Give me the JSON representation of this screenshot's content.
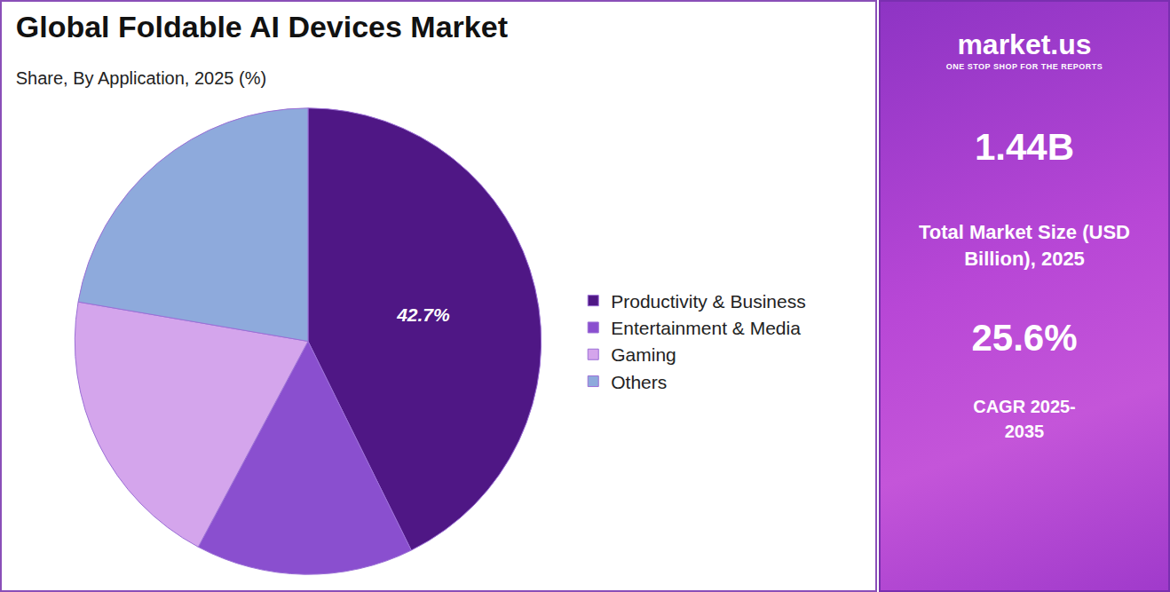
{
  "chart_data": {
    "type": "pie",
    "title": "Global Foldable AI Devices Market",
    "subtitle": "Share, By Application, 2025 (%)",
    "categories": [
      "Productivity & Business",
      "Entertainment & Media",
      "Gaming",
      "Others"
    ],
    "values": [
      42.7,
      15.1,
      19.9,
      22.3
    ],
    "value_labels": [
      "42.7%",
      null,
      null,
      null
    ],
    "colors": [
      "#4f1785",
      "#8a4fcf",
      "#d4a5ec",
      "#8eaadc"
    ],
    "data_labels": true,
    "legend": "right"
  },
  "sidebar": {
    "brand": "market.us",
    "tagline": "ONE STOP SHOP FOR THE REPORTS",
    "market_size": "1.44B",
    "market_size_label": "Total Market Size (USD Billion), 2025",
    "cagr": "25.6%",
    "cagr_label": "CAGR 2025-2035"
  }
}
